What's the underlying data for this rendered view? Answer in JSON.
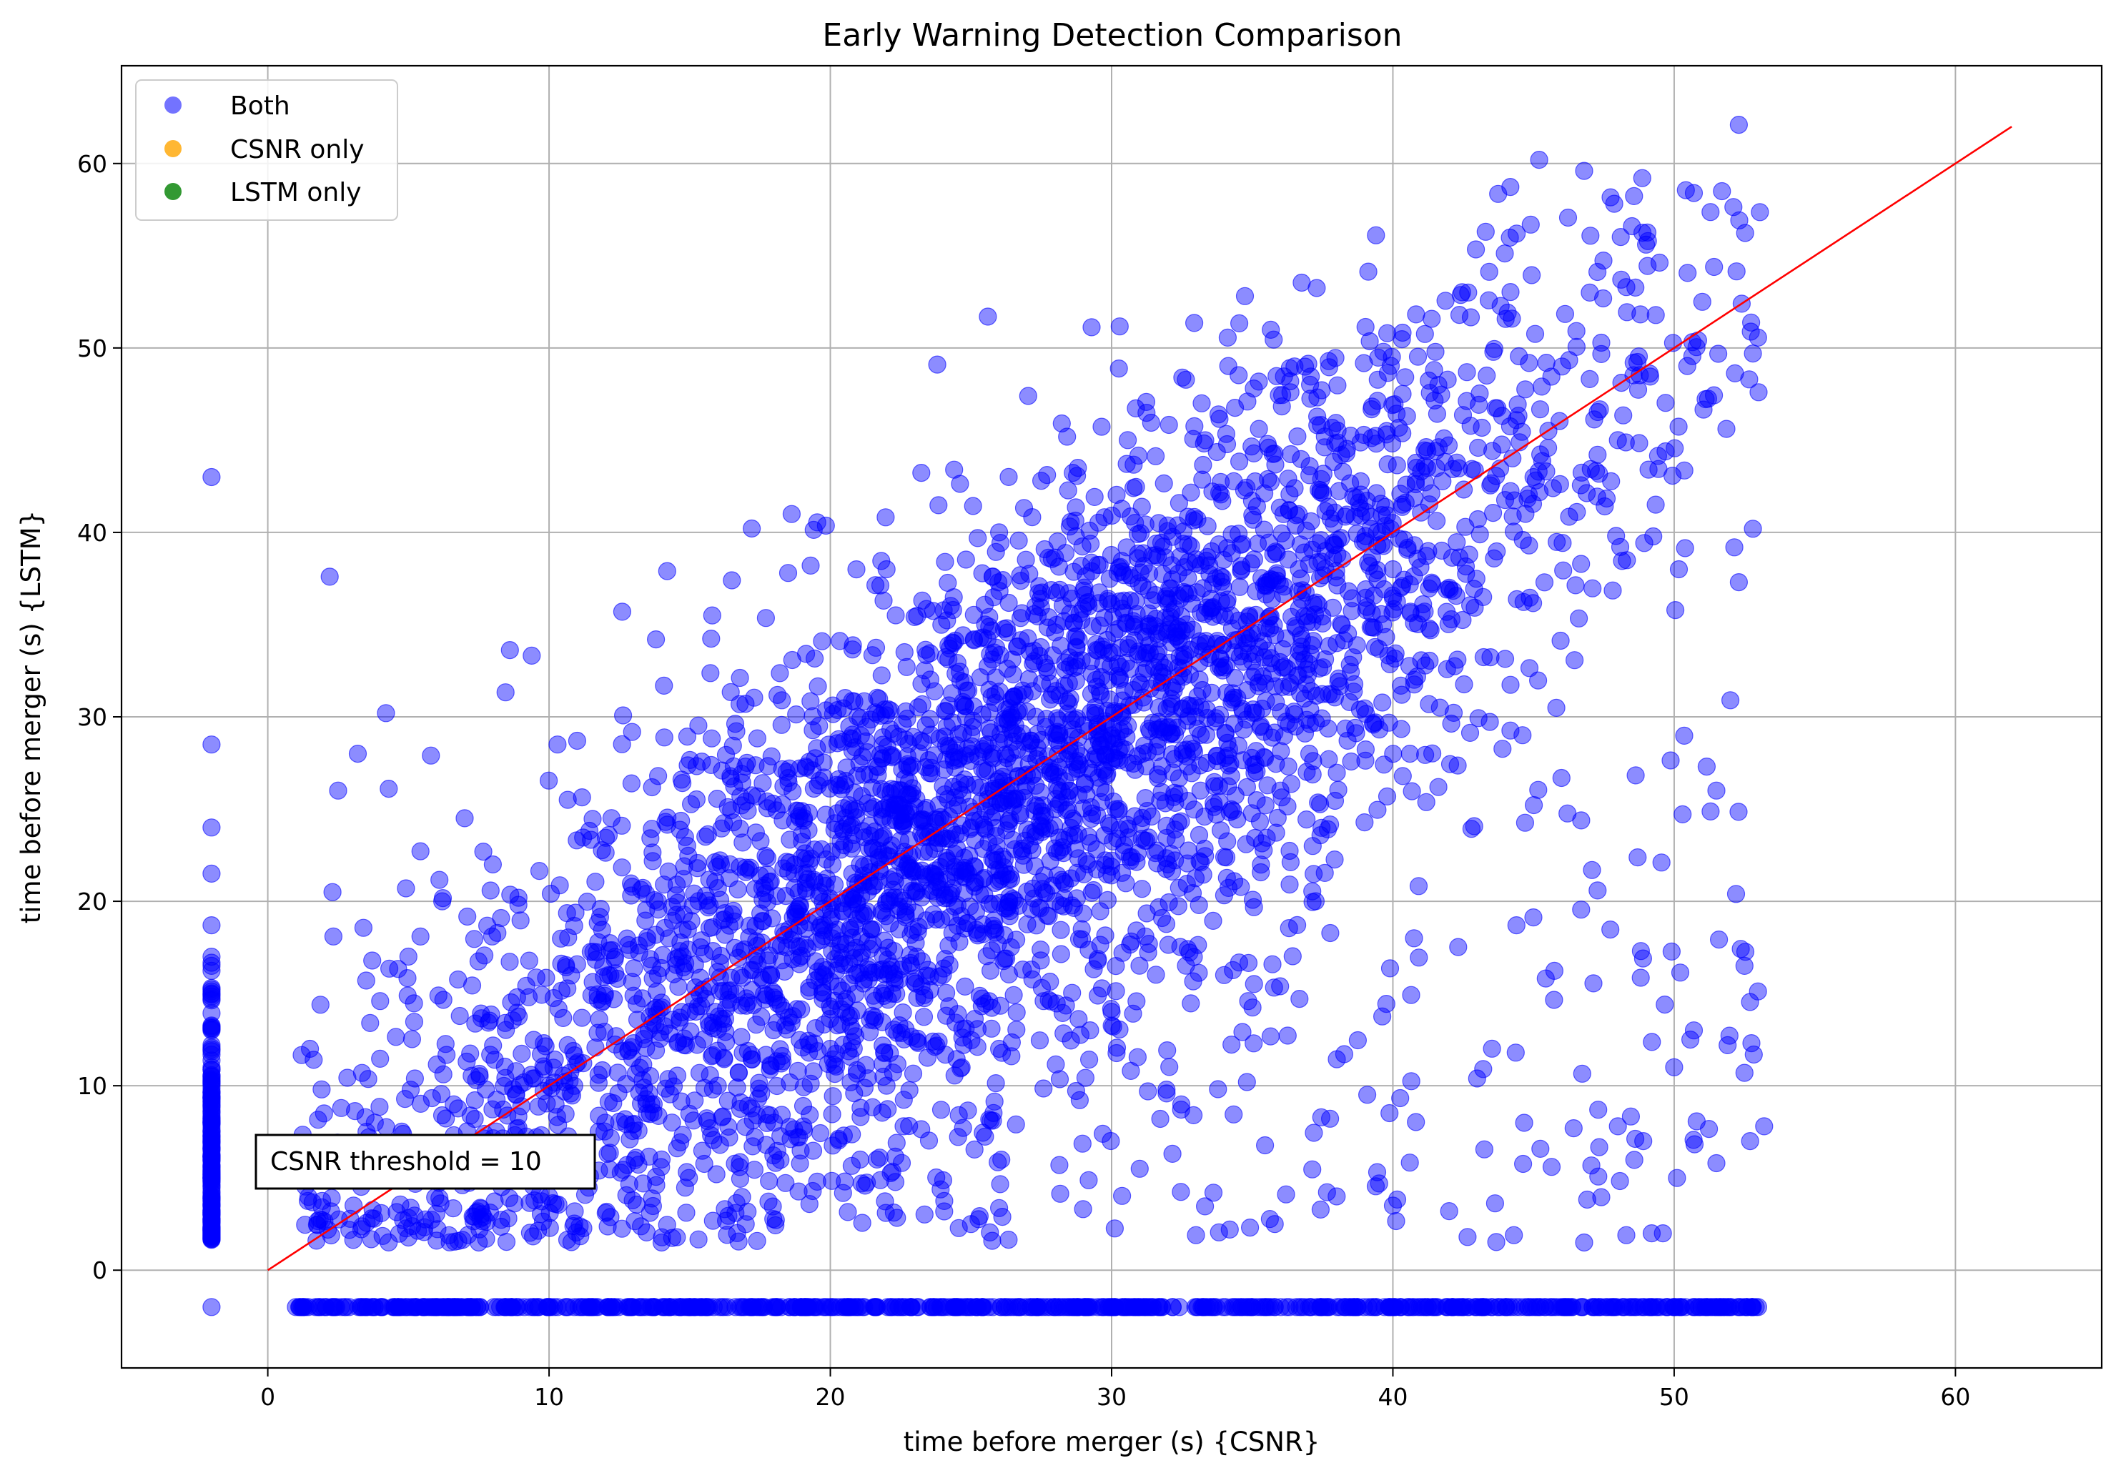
{
  "chart_data": {
    "type": "scatter",
    "title": "Early Warning Detection Comparison",
    "xlabel": "time before merger (s) {CSNR}",
    "ylabel": "time before merger (s) {LSTM}",
    "xlim": [
      -5.2,
      65.2
    ],
    "ylim": [
      -5.3,
      65.3
    ],
    "xticks": [
      0,
      10,
      20,
      30,
      40,
      50,
      60
    ],
    "yticks": [
      0,
      10,
      20,
      30,
      40,
      50,
      60
    ],
    "grid": true,
    "legend_position": "top-left",
    "series": [
      {
        "name": "Both",
        "color": "#0000ff",
        "alpha": 0.5,
        "count_estimate": 5000,
        "description_of_distribution": "dense cloud along y = x from about 1 to 53, plus a column at x = -2 (y from about 1.5 to 43) and a row at y = -2 (x from about 1 to 53)",
        "sample_points": [
          [
            -2,
            43
          ],
          [
            -2,
            28.5
          ],
          [
            -2,
            24
          ],
          [
            -2,
            21.5
          ],
          [
            -2,
            18.7
          ],
          [
            -2,
            16.5
          ],
          [
            -2,
            15
          ],
          [
            -2,
            13
          ],
          [
            -2,
            11
          ],
          [
            -2,
            9
          ],
          [
            -2,
            7
          ],
          [
            -2,
            5
          ],
          [
            -2,
            3
          ],
          [
            -2,
            2
          ],
          [
            -2,
            -2
          ],
          [
            2.2,
            37.6
          ],
          [
            4.2,
            30.2
          ],
          [
            2.5,
            26
          ],
          [
            3.2,
            28
          ],
          [
            4.3,
            26.1
          ],
          [
            5.8,
            27.9
          ],
          [
            1.5,
            12
          ],
          [
            2,
            8.5
          ],
          [
            2.3,
            20.5
          ],
          [
            3.5,
            15.7
          ],
          [
            5,
            17
          ],
          [
            6.2,
            20
          ],
          [
            7,
            24.5
          ],
          [
            8,
            22
          ],
          [
            12.6,
            35.7
          ],
          [
            14.2,
            37.9
          ],
          [
            13.8,
            34.2
          ],
          [
            10.3,
            28.5
          ],
          [
            11,
            28.7
          ],
          [
            15.8,
            35.5
          ],
          [
            16.5,
            37.4
          ],
          [
            18.5,
            37.8
          ],
          [
            19.3,
            38.2
          ],
          [
            23.8,
            49.1
          ],
          [
            25.6,
            51.7
          ],
          [
            24.4,
            43.4
          ],
          [
            27.5,
            42.8
          ],
          [
            28.8,
            43.5
          ],
          [
            22,
            38
          ],
          [
            26,
            40
          ],
          [
            33.8,
            46.4
          ],
          [
            36.5,
            49
          ],
          [
            39.8,
            50.8
          ],
          [
            45.2,
            60.2
          ],
          [
            46.8,
            59.6
          ],
          [
            51.7,
            58.5
          ],
          [
            52.3,
            62.1
          ],
          [
            50.7,
            58.4
          ],
          [
            48.5,
            56.6
          ],
          [
            49,
            55.6
          ],
          [
            44.4,
            56.2
          ],
          [
            43.3,
            56.3
          ],
          [
            47,
            53
          ],
          [
            48.3,
            53.3
          ],
          [
            51,
            52.5
          ],
          [
            52.4,
            52.4
          ],
          [
            52.8,
            49.7
          ],
          [
            53,
            47.6
          ],
          [
            52.8,
            40.2
          ],
          [
            52.3,
            37.3
          ],
          [
            52,
            30.9
          ],
          [
            51.5,
            26
          ],
          [
            52.5,
            16.5
          ],
          [
            52.2,
            20.4
          ],
          [
            51.9,
            12.2
          ],
          [
            52.5,
            10.7
          ],
          [
            53.2,
            7.8
          ],
          [
            52.7,
            7
          ],
          [
            51.5,
            5.8
          ],
          [
            50.7,
            13
          ],
          [
            50,
            11
          ],
          [
            50.1,
            5
          ],
          [
            49.2,
            2
          ],
          [
            49.6,
            2
          ],
          [
            48.3,
            1.9
          ],
          [
            46.8,
            1.5
          ],
          [
            44.3,
            1.9
          ],
          [
            35.8,
            2.5
          ],
          [
            34.2,
            2.2
          ],
          [
            33,
            1.9
          ],
          [
            25,
            2.5
          ],
          [
            14,
            1.5
          ],
          [
            7.5,
            1.5
          ],
          [
            6,
            1.6
          ],
          [
            47.3,
            8.7
          ],
          [
            48,
            7.8
          ],
          [
            48.9,
            7
          ],
          [
            42,
            3.2
          ],
          [
            38,
            4
          ],
          [
            40,
            3.5
          ],
          [
            31,
            5.5
          ],
          [
            10,
            10
          ],
          [
            15,
            14
          ],
          [
            20,
            19
          ],
          [
            25,
            24
          ],
          [
            30,
            29
          ],
          [
            35,
            33
          ],
          [
            40,
            38
          ],
          [
            45,
            43
          ],
          [
            48,
            45
          ],
          [
            18,
            15
          ],
          [
            22,
            20
          ],
          [
            28,
            25
          ],
          [
            33,
            30
          ],
          [
            38,
            34
          ],
          [
            42,
            37
          ],
          [
            12,
            8
          ],
          [
            16,
            10
          ],
          [
            20,
            12
          ],
          [
            24,
            16
          ],
          [
            28,
            20
          ],
          [
            32,
            22
          ],
          [
            36,
            26
          ],
          [
            8,
            5
          ],
          [
            10,
            4
          ],
          [
            14,
            6
          ],
          [
            18,
            8
          ],
          [
            22,
            10
          ],
          [
            26,
            12
          ],
          [
            30,
            14
          ],
          [
            34,
            16
          ],
          [
            1,
            -2
          ],
          [
            5,
            -2
          ],
          [
            10,
            -2
          ],
          [
            15,
            -2
          ],
          [
            20,
            -2
          ],
          [
            25,
            -2
          ],
          [
            30,
            -2
          ],
          [
            35,
            -2
          ],
          [
            40,
            -2
          ],
          [
            45,
            -2
          ],
          [
            50,
            -2
          ],
          [
            51.5,
            -2
          ],
          [
            52,
            -2
          ],
          [
            52.8,
            -2
          ]
        ]
      },
      {
        "name": "CSNR only",
        "color": "#ffa500",
        "alpha": 0.8,
        "sample_points": []
      },
      {
        "name": "LSTM only",
        "color": "#008000",
        "alpha": 0.8,
        "sample_points": []
      }
    ],
    "reference_line": {
      "x": [
        0,
        62
      ],
      "y": [
        0,
        62
      ],
      "color": "#ff0000"
    },
    "annotation": {
      "text": "CSNR threshold = 10",
      "x": 5.5,
      "y": 5.8
    }
  }
}
